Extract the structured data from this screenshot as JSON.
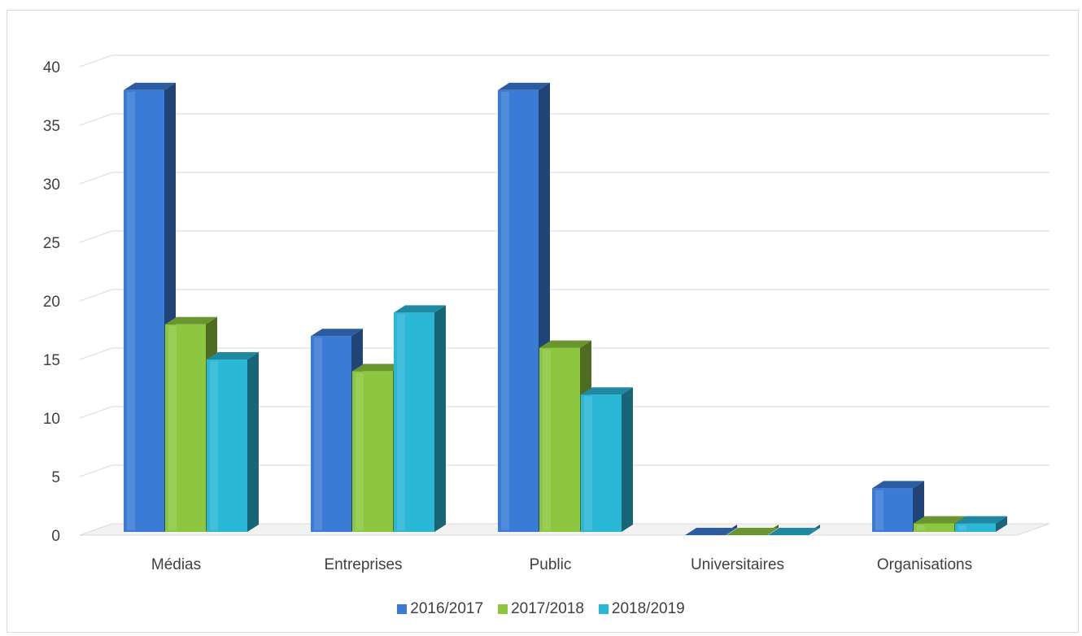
{
  "chart_data": {
    "type": "bar",
    "categories": [
      "Médias",
      "Entreprises",
      "Public",
      "Universitaires",
      "Organisations"
    ],
    "series": [
      {
        "name": "2016/2017",
        "values": [
          38,
          17,
          38,
          0,
          4
        ],
        "color": "#3A7BD5"
      },
      {
        "name": "2017/2018",
        "values": [
          18,
          14,
          16,
          0,
          1
        ],
        "color": "#8DC63F"
      },
      {
        "name": "2018/2019",
        "values": [
          15,
          19,
          12,
          0,
          1
        ],
        "color": "#2BB7D6"
      }
    ],
    "yticks": [
      "0",
      "5",
      "10",
      "15",
      "20",
      "25",
      "30",
      "35",
      "40"
    ],
    "ylim": [
      0,
      40
    ],
    "grid": true,
    "legend_position": "bottom",
    "style": "3d-clustered-column"
  }
}
